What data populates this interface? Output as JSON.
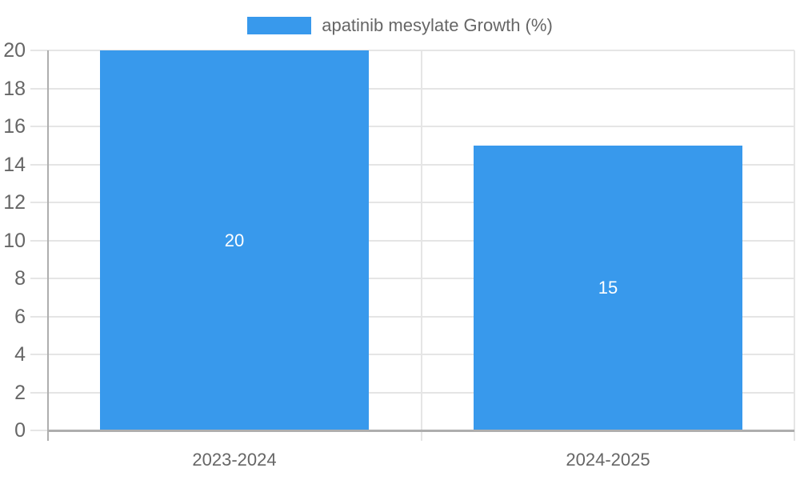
{
  "chart_data": {
    "type": "bar",
    "title": "",
    "legend": {
      "label": "apatinib mesylate Growth (%)",
      "position": "top-center"
    },
    "categories": [
      "2023-2024",
      "2024-2025"
    ],
    "series": [
      {
        "name": "apatinib mesylate Growth (%)",
        "values": [
          20,
          15
        ]
      }
    ],
    "data_labels": [
      "20",
      "15"
    ],
    "xlabel": "",
    "ylabel": "",
    "ylim": [
      0,
      20
    ],
    "yticks": [
      0,
      2,
      4,
      6,
      8,
      10,
      12,
      14,
      16,
      18,
      20
    ],
    "grid": true,
    "colors": {
      "bar": "#3899ec",
      "grid_line": "#e5e5e5",
      "axis_line": "#aeaeae",
      "tick_label": "#666666",
      "data_label": "#ffffff",
      "background": "#ffffff"
    }
  }
}
